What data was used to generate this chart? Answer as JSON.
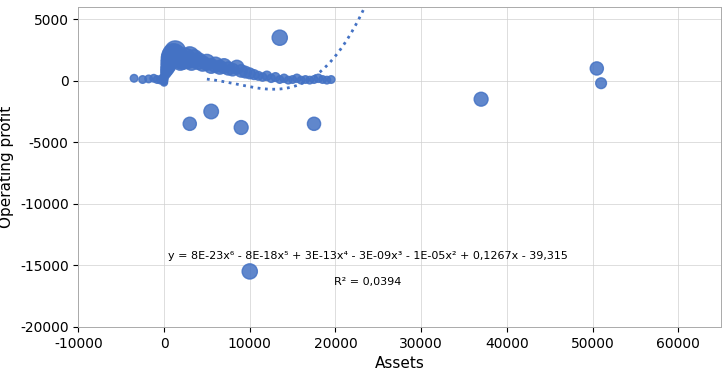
{
  "title": "",
  "xlabel": "Assets",
  "ylabel": "Operating profit",
  "xlim": [
    -10000,
    65000
  ],
  "ylim": [
    -20000,
    6000
  ],
  "xticks": [
    -10000,
    0,
    10000,
    20000,
    30000,
    40000,
    50000,
    60000
  ],
  "yticks": [
    -20000,
    -15000,
    -10000,
    -5000,
    0,
    5000
  ],
  "scatter_color": "#4472C4",
  "trend_color": "#4472C4",
  "equation": "y = 8E-23x⁶ - 8E-18x⁵ + 3E-13x⁴ - 3E-09x³ - 1E-05x² + 0,1267x - 39,315",
  "r_squared": "R² = 0,0394",
  "poly_coeffs": [
    8e-23,
    -8e-18,
    3e-13,
    -3e-09,
    -1e-05,
    0.1267,
    -39.315
  ],
  "scatter_points": [
    [
      -3500,
      200
    ],
    [
      -2500,
      100
    ],
    [
      -1800,
      150
    ],
    [
      -1200,
      200
    ],
    [
      -800,
      100
    ],
    [
      -400,
      50
    ],
    [
      -200,
      200
    ],
    [
      0,
      50
    ],
    [
      0,
      100
    ],
    [
      0,
      150
    ],
    [
      0,
      200
    ],
    [
      0,
      -50
    ],
    [
      0,
      -150
    ],
    [
      0,
      100
    ],
    [
      0,
      50
    ],
    [
      100,
      400
    ],
    [
      200,
      600
    ],
    [
      300,
      800
    ],
    [
      400,
      1000
    ],
    [
      500,
      1200
    ],
    [
      600,
      1500
    ],
    [
      700,
      1800
    ],
    [
      800,
      2000
    ],
    [
      900,
      1800
    ],
    [
      1000,
      2200
    ],
    [
      1100,
      2000
    ],
    [
      1200,
      2200
    ],
    [
      1300,
      2400
    ],
    [
      1400,
      2100
    ],
    [
      1500,
      1900
    ],
    [
      1600,
      1800
    ],
    [
      1700,
      2000
    ],
    [
      1800,
      1700
    ],
    [
      1900,
      1500
    ],
    [
      2000,
      1800
    ],
    [
      2200,
      1600
    ],
    [
      2500,
      1900
    ],
    [
      2800,
      1700
    ],
    [
      3000,
      2000
    ],
    [
      3200,
      1500
    ],
    [
      3500,
      1800
    ],
    [
      4000,
      1600
    ],
    [
      4500,
      1400
    ],
    [
      5000,
      1500
    ],
    [
      5500,
      1200
    ],
    [
      6000,
      1300
    ],
    [
      6500,
      1100
    ],
    [
      7000,
      1200
    ],
    [
      7500,
      1000
    ],
    [
      8000,
      900
    ],
    [
      8500,
      1100
    ],
    [
      9000,
      800
    ],
    [
      9500,
      700
    ],
    [
      10000,
      600
    ],
    [
      10500,
      500
    ],
    [
      11000,
      400
    ],
    [
      11500,
      300
    ],
    [
      12000,
      400
    ],
    [
      12500,
      200
    ],
    [
      13000,
      300
    ],
    [
      13500,
      100
    ],
    [
      14000,
      200
    ],
    [
      14500,
      50
    ],
    [
      15000,
      100
    ],
    [
      15500,
      200
    ],
    [
      16000,
      50
    ],
    [
      16500,
      100
    ],
    [
      17000,
      50
    ],
    [
      17500,
      100
    ],
    [
      18000,
      200
    ],
    [
      18500,
      100
    ],
    [
      19000,
      50
    ],
    [
      19500,
      100
    ],
    [
      3000,
      -3500
    ],
    [
      5500,
      -2500
    ],
    [
      9000,
      -3800
    ],
    [
      13500,
      3500
    ],
    [
      17500,
      -3500
    ],
    [
      37000,
      -1500
    ],
    [
      50500,
      1000
    ],
    [
      51000,
      -200
    ],
    [
      10000,
      -15500
    ]
  ],
  "scatter_sizes": [
    30,
    30,
    30,
    30,
    30,
    30,
    30,
    25,
    25,
    25,
    25,
    25,
    25,
    25,
    25,
    35,
    50,
    70,
    90,
    110,
    140,
    160,
    180,
    160,
    200,
    180,
    200,
    220,
    190,
    170,
    160,
    180,
    150,
    130,
    160,
    140,
    170,
    150,
    180,
    130,
    160,
    140,
    120,
    130,
    110,
    120,
    100,
    110,
    90,
    80,
    100,
    80,
    70,
    60,
    50,
    40,
    35,
    45,
    35,
    40,
    30,
    35,
    30,
    30,
    35,
    30,
    30,
    30,
    30,
    35,
    30,
    30,
    30,
    90,
    110,
    100,
    120,
    90,
    100,
    90,
    60,
    120
  ]
}
